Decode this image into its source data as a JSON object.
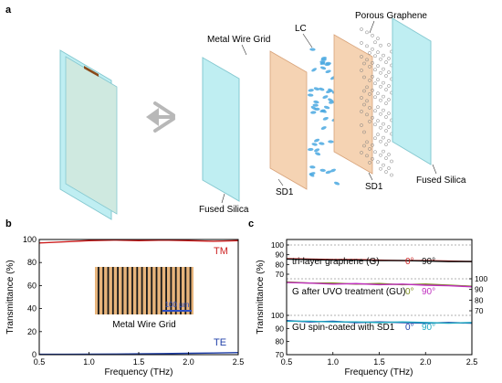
{
  "panels": {
    "a": "a",
    "b": "b",
    "c": "c"
  },
  "panel_a": {
    "labels": {
      "metal_wire_grid": "Metal Wire Grid",
      "lc": "LC",
      "porous_graphene": "Porous Graphene",
      "sd1_left": "SD1",
      "sd1_right": "SD1",
      "fused_silica_left": "Fused Silica",
      "fused_silica_right": "Fused Silica"
    },
    "colors": {
      "silica": "#bfeef2",
      "silica_edge": "#86c9d1",
      "gold": "#c9a23a",
      "gold_dark": "#8a6a1a",
      "sd1": "#f5d3b3",
      "lc": "#4aa8e0",
      "graphene": "#808080",
      "arrow": "#b8b8b8"
    }
  },
  "chart_data": [
    {
      "panel": "b",
      "type": "line",
      "xlabel": "Frequency (THz)",
      "ylabel": "Transmittance (%)",
      "xlim": [
        0.5,
        2.5
      ],
      "ylim": [
        0,
        100
      ],
      "xticks": [
        "0.5",
        "1.0",
        "1.5",
        "2.0",
        "2.5"
      ],
      "yticks": [
        "0",
        "20",
        "40",
        "60",
        "80",
        "100"
      ],
      "series": [
        {
          "name": "TM",
          "color": "#cc1f1f",
          "x": [
            0.5,
            0.75,
            1.0,
            1.25,
            1.5,
            1.75,
            2.0,
            2.25,
            2.5
          ],
          "y": [
            97,
            98,
            99,
            99.5,
            99,
            99.5,
            99,
            98.5,
            99
          ]
        },
        {
          "name": "TE",
          "color": "#1f3fa8",
          "x": [
            0.5,
            0.75,
            1.0,
            1.25,
            1.5,
            1.75,
            2.0,
            2.25,
            2.5
          ],
          "y": [
            0.3,
            0.3,
            0.4,
            0.5,
            0.7,
            0.9,
            1.2,
            1.4,
            1.8
          ]
        }
      ],
      "inset": {
        "caption": "Metal Wire Grid",
        "scalebar": "100 μm",
        "colors": {
          "stripe_light": "#e7b47b",
          "stripe_dark": "#1a1a1a",
          "scalebar": "#2f4fc0"
        }
      }
    },
    {
      "panel": "c",
      "type": "line",
      "xlabel": "Frequency (THz)",
      "ylabel": "Transmittance (%)",
      "xlim": [
        0.5,
        2.5
      ],
      "xticks": [
        "0.5",
        "1.0",
        "1.5",
        "2.0",
        "2.5"
      ],
      "subplots": [
        {
          "label": "tri-layer graphene (G)",
          "ylim": [
            70,
            100
          ],
          "yticks": [
            "70",
            "80",
            "90",
            "100"
          ],
          "axis_side": "left",
          "reference_line": 100,
          "series": [
            {
              "name": "0°",
              "color": "#cc1f1f",
              "x": [
                0.5,
                0.75,
                1.0,
                1.25,
                1.5,
                1.75,
                2.0,
                2.25,
                2.5
              ],
              "y": [
                86,
                85.5,
                85,
                85,
                84.5,
                84,
                84,
                83.5,
                83
              ]
            },
            {
              "name": "90°",
              "color": "#111111",
              "x": [
                0.5,
                0.75,
                1.0,
                1.25,
                1.5,
                1.75,
                2.0,
                2.25,
                2.5
              ],
              "y": [
                85.5,
                85,
                84.5,
                84.5,
                84,
                84,
                83.5,
                83,
                83
              ]
            }
          ]
        },
        {
          "label": "G after UVO treatment (GU)",
          "ylim": [
            70,
            100
          ],
          "yticks": [
            "70",
            "80",
            "90",
            "100"
          ],
          "axis_side": "right",
          "reference_line": 100,
          "series": [
            {
              "name": "0°",
              "color": "#7a8a1a",
              "x": [
                0.5,
                0.75,
                1.0,
                1.25,
                1.5,
                1.75,
                2.0,
                2.25,
                2.5
              ],
              "y": [
                97,
                96,
                96,
                95,
                95.5,
                94.5,
                95,
                94,
                93
              ]
            },
            {
              "name": "90°",
              "color": "#c030c0",
              "x": [
                0.5,
                0.75,
                1.0,
                1.25,
                1.5,
                1.75,
                2.0,
                2.25,
                2.5
              ],
              "y": [
                96.5,
                96,
                95,
                95.5,
                94.5,
                95,
                94,
                93.5,
                92.5
              ]
            }
          ]
        },
        {
          "label": "GU spin-coated with SD1",
          "ylim": [
            70,
            100
          ],
          "yticks": [
            "70",
            "80",
            "90",
            "100"
          ],
          "axis_side": "left",
          "reference_line": 100,
          "series": [
            {
              "name": "0°",
              "color": "#1f3fa8",
              "x": [
                0.5,
                0.75,
                1.0,
                1.25,
                1.5,
                1.75,
                2.0,
                2.25,
                2.5
              ],
              "y": [
                96,
                95,
                95.5,
                94.5,
                95,
                94.5,
                94,
                94.5,
                94
              ]
            },
            {
              "name": "90°",
              "color": "#1fa8c0",
              "x": [
                0.5,
                0.75,
                1.0,
                1.25,
                1.5,
                1.75,
                2.0,
                2.25,
                2.5
              ],
              "y": [
                95.5,
                95.5,
                95,
                95,
                94.5,
                95,
                94.5,
                94,
                94.5
              ]
            }
          ]
        }
      ]
    }
  ]
}
